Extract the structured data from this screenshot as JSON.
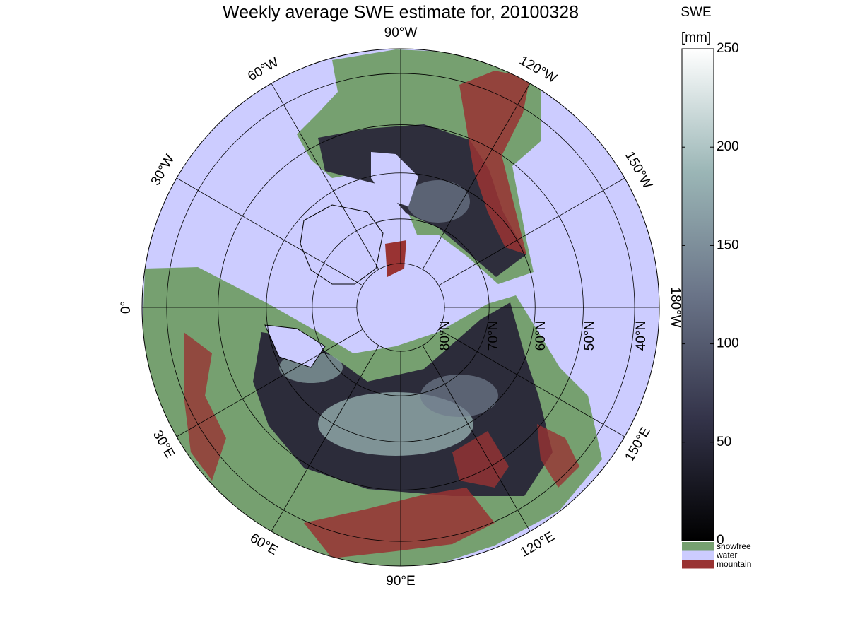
{
  "title": "Weekly average SWE estimate for, 20100328",
  "colorbar": {
    "label": "SWE",
    "unit": "[mm]",
    "lim": [
      0,
      250
    ],
    "ticks": [
      0,
      50,
      100,
      150,
      200,
      250
    ],
    "colormap": [
      "#000000",
      "#34344a",
      "#6a7488",
      "#9bb6b6",
      "#ffffff"
    ]
  },
  "legend": [
    {
      "name": "snowfree",
      "color": "#76a070"
    },
    {
      "name": "water",
      "color": "#ccccff"
    },
    {
      "name": "mountain",
      "color": "#993333"
    }
  ],
  "meridians": [
    {
      "lon": -90,
      "label": "90°W"
    },
    {
      "lon": -120,
      "label": "120°W"
    },
    {
      "lon": -150,
      "label": "150°W"
    },
    {
      "lon": -180,
      "label": "180°W"
    },
    {
      "lon": -60,
      "label": "60°W"
    },
    {
      "lon": -30,
      "label": "30°W"
    },
    {
      "lon": 0,
      "label": "0°"
    },
    {
      "lon": 30,
      "label": "30°E"
    },
    {
      "lon": 60,
      "label": "60°E"
    },
    {
      "lon": 90,
      "label": "90°E"
    },
    {
      "lon": 120,
      "label": "120°E"
    },
    {
      "lon": 150,
      "label": "150°E"
    }
  ],
  "parallels": [
    {
      "lat": 80,
      "label": "80°N"
    },
    {
      "lat": 70,
      "label": "70°N"
    },
    {
      "lat": 60,
      "label": "60°N"
    },
    {
      "lat": 50,
      "label": "50°N"
    },
    {
      "lat": 40,
      "label": "40°N"
    }
  ]
}
